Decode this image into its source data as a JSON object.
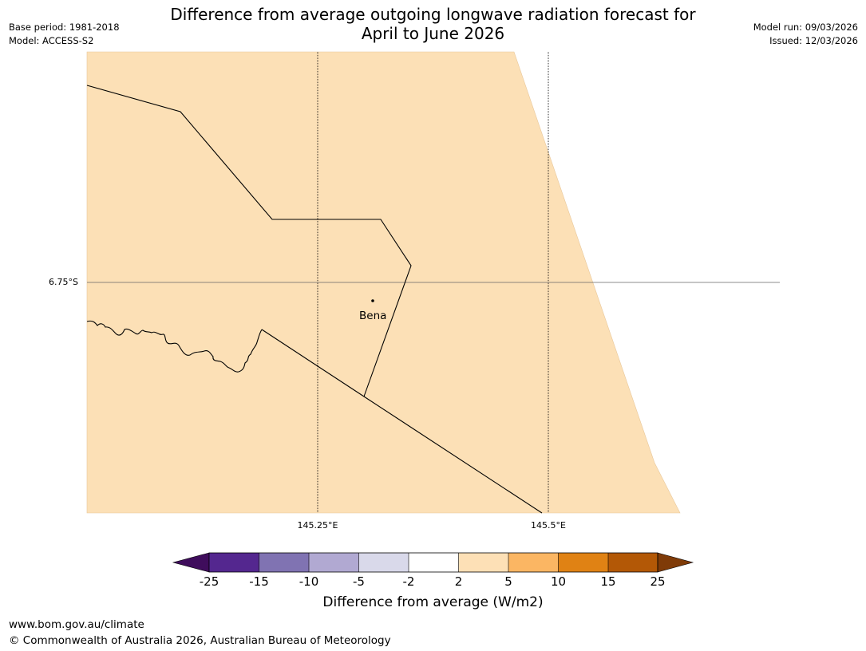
{
  "header": {
    "base_period": "Base period: 1981-2018",
    "model": "Model: ACCESS-S2",
    "model_run": "Model run: 09/03/2026",
    "issued": "Issued: 12/03/2026",
    "title_line1": "Difference from average outgoing longwave radiation forecast for",
    "title_line2": "April to June 2026"
  },
  "map": {
    "fill_color": "#fce0b6",
    "fill_category": "2 to 5",
    "latitude_labels": [
      "6.75°S"
    ],
    "longitude_labels": [
      "145.25°E",
      "145.5°E"
    ],
    "places": [
      {
        "name": "Bena"
      }
    ]
  },
  "colorbar": {
    "label": "Difference from average (W/m2)",
    "ticks": [
      "-25",
      "-15",
      "-10",
      "-5",
      "-2",
      "2",
      "5",
      "10",
      "15",
      "25"
    ],
    "colors": [
      "#3f0d5c",
      "#54278f",
      "#8073b2",
      "#b1a9d2",
      "#d9d9ea",
      "#ffffff",
      "#fde0b6",
      "#fbb663",
      "#e08214",
      "#b35806",
      "#7f3b08"
    ]
  },
  "footer": {
    "url": "www.bom.gov.au/climate",
    "copyright": "© Commonwealth of Australia 2026, Australian Bureau of Meteorology"
  }
}
